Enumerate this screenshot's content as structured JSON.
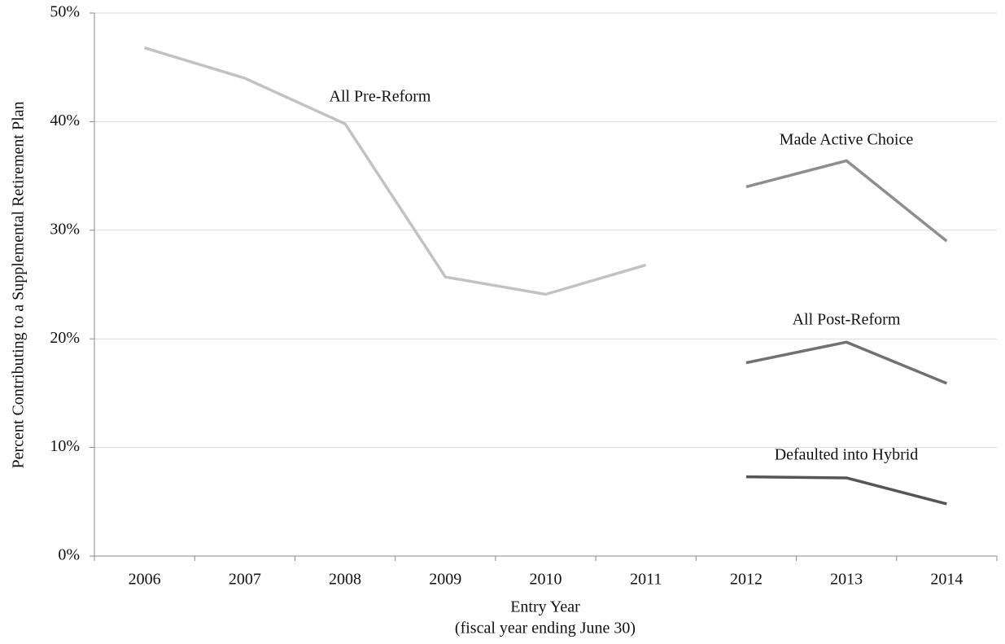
{
  "chart_data": {
    "type": "line",
    "ylabel": "Percent Contributing to a Supplemental Retirement Plan",
    "xlabel": [
      "Entry Year",
      "(fiscal year ending June 30)"
    ],
    "categories": [
      "2006",
      "2007",
      "2008",
      "2009",
      "2010",
      "2011",
      "2012",
      "2013",
      "2014"
    ],
    "series": [
      {
        "name": "All Pre-Reform",
        "color": "#c2c2c2",
        "values": [
          46.8,
          44.0,
          39.8,
          25.7,
          24.1,
          26.8,
          null,
          null,
          null
        ]
      },
      {
        "name": "Made Active Choice",
        "color": "#8e8e8e",
        "values": [
          null,
          null,
          null,
          null,
          null,
          null,
          34.0,
          36.4,
          29.0
        ]
      },
      {
        "name": "All Post-Reform",
        "color": "#717171",
        "values": [
          null,
          null,
          null,
          null,
          null,
          null,
          17.8,
          19.7,
          15.9
        ]
      },
      {
        "name": "Defaulted into Hybrid",
        "color": "#555555",
        "values": [
          null,
          null,
          null,
          null,
          null,
          null,
          7.3,
          7.2,
          4.8
        ]
      }
    ],
    "ylim": [
      0,
      50
    ],
    "yticks": [
      {
        "value": 0,
        "label": "0%"
      },
      {
        "value": 10,
        "label": "10%"
      },
      {
        "value": 20,
        "label": "20%"
      },
      {
        "value": 30,
        "label": "30%"
      },
      {
        "value": 40,
        "label": "40%"
      },
      {
        "value": 50,
        "label": "50%"
      }
    ],
    "grid": true
  }
}
